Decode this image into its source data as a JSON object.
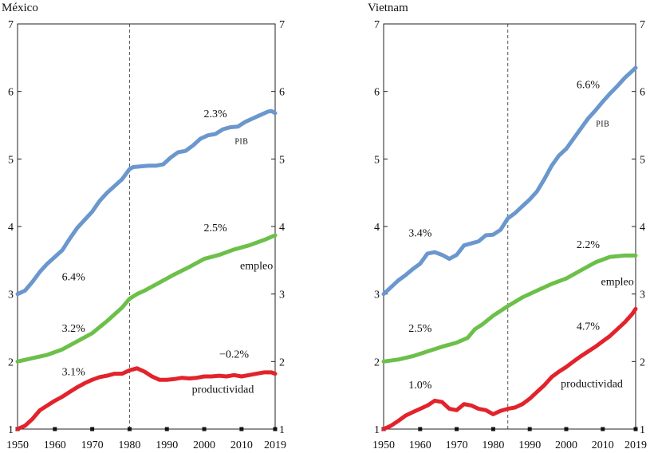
{
  "chart_data": [
    {
      "type": "line",
      "title": "México",
      "xlim": [
        1950,
        2019
      ],
      "ylim": [
        1,
        7
      ],
      "xticks": [
        1950,
        1960,
        1970,
        1980,
        1990,
        2000,
        2010,
        2019
      ],
      "yticks": [
        1,
        2,
        3,
        4,
        5,
        6,
        7
      ],
      "vline": 1980,
      "series": [
        {
          "name": "PIB",
          "color": "#6a97cd",
          "x": [
            1950,
            1952,
            1954,
            1956,
            1958,
            1960,
            1962,
            1964,
            1966,
            1968,
            1970,
            1972,
            1974,
            1976,
            1978,
            1980,
            1981,
            1983,
            1985,
            1987,
            1989,
            1991,
            1993,
            1995,
            1997,
            1999,
            2001,
            2003,
            2005,
            2007,
            2009,
            2011,
            2013,
            2015,
            2017,
            2018,
            2019
          ],
          "y": [
            3.0,
            3.05,
            3.18,
            3.33,
            3.45,
            3.55,
            3.65,
            3.82,
            3.98,
            4.1,
            4.22,
            4.38,
            4.5,
            4.6,
            4.7,
            4.85,
            4.88,
            4.89,
            4.9,
            4.9,
            4.92,
            5.02,
            5.1,
            5.12,
            5.2,
            5.3,
            5.35,
            5.37,
            5.44,
            5.47,
            5.48,
            5.55,
            5.6,
            5.65,
            5.7,
            5.71,
            5.68
          ]
        },
        {
          "name": "empleo",
          "color": "#6cc04a",
          "x": [
            1950,
            1954,
            1958,
            1962,
            1966,
            1970,
            1974,
            1978,
            1980,
            1982,
            1984,
            1988,
            1992,
            1996,
            2000,
            2004,
            2008,
            2012,
            2016,
            2019
          ],
          "y": [
            2.0,
            2.05,
            2.1,
            2.18,
            2.3,
            2.42,
            2.6,
            2.8,
            2.93,
            3.0,
            3.05,
            3.17,
            3.29,
            3.4,
            3.52,
            3.58,
            3.66,
            3.72,
            3.8,
            3.87
          ]
        },
        {
          "name": "productividad",
          "color": "#e2232b",
          "x": [
            1950,
            1952,
            1954,
            1956,
            1958,
            1960,
            1962,
            1964,
            1966,
            1968,
            1970,
            1972,
            1974,
            1976,
            1978,
            1980,
            1982,
            1984,
            1986,
            1988,
            1990,
            1992,
            1994,
            1996,
            1998,
            2000,
            2002,
            2004,
            2006,
            2008,
            2010,
            2012,
            2014,
            2016,
            2018,
            2019
          ],
          "y": [
            1.0,
            1.05,
            1.15,
            1.28,
            1.35,
            1.42,
            1.48,
            1.55,
            1.62,
            1.68,
            1.73,
            1.77,
            1.79,
            1.82,
            1.82,
            1.87,
            1.9,
            1.85,
            1.78,
            1.73,
            1.73,
            1.74,
            1.76,
            1.75,
            1.76,
            1.78,
            1.78,
            1.79,
            1.78,
            1.8,
            1.78,
            1.8,
            1.82,
            1.84,
            1.84,
            1.82
          ]
        }
      ],
      "annotations": [
        {
          "text": "2.3%",
          "x": 2003,
          "y": 5.62
        },
        {
          "text": "PIB",
          "x": 2010,
          "y": 5.22,
          "small": true
        },
        {
          "text": "6.4%",
          "x": 1965,
          "y": 3.2
        },
        {
          "text": "2.5%",
          "x": 2003,
          "y": 3.93
        },
        {
          "text": "empleo",
          "x": 2014,
          "y": 3.37
        },
        {
          "text": "3.2%",
          "x": 1965,
          "y": 2.44
        },
        {
          "text": "−0.2%",
          "x": 2008,
          "y": 2.06
        },
        {
          "text": "3.1%",
          "x": 1965,
          "y": 1.8
        },
        {
          "text": "productividad",
          "x": 2005,
          "y": 1.54
        }
      ]
    },
    {
      "type": "line",
      "title": "Vietnam",
      "xlim": [
        1950,
        2019
      ],
      "ylim": [
        1,
        7
      ],
      "xticks": [
        1950,
        1960,
        1970,
        1980,
        1990,
        2000,
        2010,
        2019
      ],
      "yticks": [
        1,
        2,
        3,
        4,
        5,
        6,
        7
      ],
      "vline": 1984,
      "series": [
        {
          "name": "PIB",
          "color": "#6a97cd",
          "x": [
            1950,
            1952,
            1954,
            1956,
            1958,
            1960,
            1962,
            1964,
            1966,
            1968,
            1970,
            1972,
            1974,
            1976,
            1978,
            1980,
            1982,
            1984,
            1986,
            1988,
            1990,
            1992,
            1994,
            1996,
            1998,
            2000,
            2002,
            2004,
            2006,
            2008,
            2010,
            2012,
            2014,
            2016,
            2018,
            2019
          ],
          "y": [
            3.0,
            3.1,
            3.2,
            3.28,
            3.37,
            3.45,
            3.6,
            3.62,
            3.58,
            3.52,
            3.58,
            3.72,
            3.75,
            3.78,
            3.87,
            3.88,
            3.95,
            4.12,
            4.2,
            4.3,
            4.4,
            4.52,
            4.7,
            4.9,
            5.05,
            5.15,
            5.3,
            5.45,
            5.6,
            5.72,
            5.85,
            5.97,
            6.08,
            6.2,
            6.3,
            6.35
          ]
        },
        {
          "name": "empleo",
          "color": "#6cc04a",
          "x": [
            1950,
            1954,
            1958,
            1962,
            1966,
            1970,
            1973,
            1975,
            1977,
            1980,
            1984,
            1988,
            1992,
            1996,
            2000,
            2004,
            2008,
            2012,
            2016,
            2019
          ],
          "y": [
            2.0,
            2.03,
            2.08,
            2.15,
            2.22,
            2.28,
            2.35,
            2.48,
            2.55,
            2.68,
            2.82,
            2.95,
            3.05,
            3.15,
            3.23,
            3.35,
            3.47,
            3.55,
            3.57,
            3.57
          ]
        },
        {
          "name": "productividad",
          "color": "#e2232b",
          "x": [
            1950,
            1952,
            1954,
            1956,
            1958,
            1960,
            1962,
            1964,
            1966,
            1968,
            1970,
            1972,
            1974,
            1976,
            1978,
            1980,
            1982,
            1984,
            1986,
            1988,
            1990,
            1992,
            1994,
            1996,
            1998,
            2000,
            2002,
            2004,
            2006,
            2008,
            2010,
            2012,
            2014,
            2016,
            2018,
            2019
          ],
          "y": [
            1.0,
            1.05,
            1.12,
            1.2,
            1.25,
            1.3,
            1.35,
            1.42,
            1.4,
            1.3,
            1.28,
            1.37,
            1.35,
            1.3,
            1.28,
            1.22,
            1.27,
            1.3,
            1.32,
            1.37,
            1.45,
            1.55,
            1.65,
            1.77,
            1.85,
            1.92,
            2.0,
            2.08,
            2.15,
            2.22,
            2.3,
            2.38,
            2.48,
            2.58,
            2.7,
            2.78
          ]
        }
      ],
      "annotations": [
        {
          "text": "6.6%",
          "x": 2006,
          "y": 6.05
        },
        {
          "text": "PIB",
          "x": 2010,
          "y": 5.48,
          "small": true
        },
        {
          "text": "3.4%",
          "x": 1960,
          "y": 3.85
        },
        {
          "text": "2.2%",
          "x": 2006,
          "y": 3.68
        },
        {
          "text": "empleo",
          "x": 2014,
          "y": 3.13
        },
        {
          "text": "2.5%",
          "x": 1960,
          "y": 2.44
        },
        {
          "text": "4.7%",
          "x": 2006,
          "y": 2.47
        },
        {
          "text": "1.0%",
          "x": 1960,
          "y": 1.6
        },
        {
          "text": "productividad",
          "x": 2007,
          "y": 1.62
        }
      ]
    }
  ]
}
